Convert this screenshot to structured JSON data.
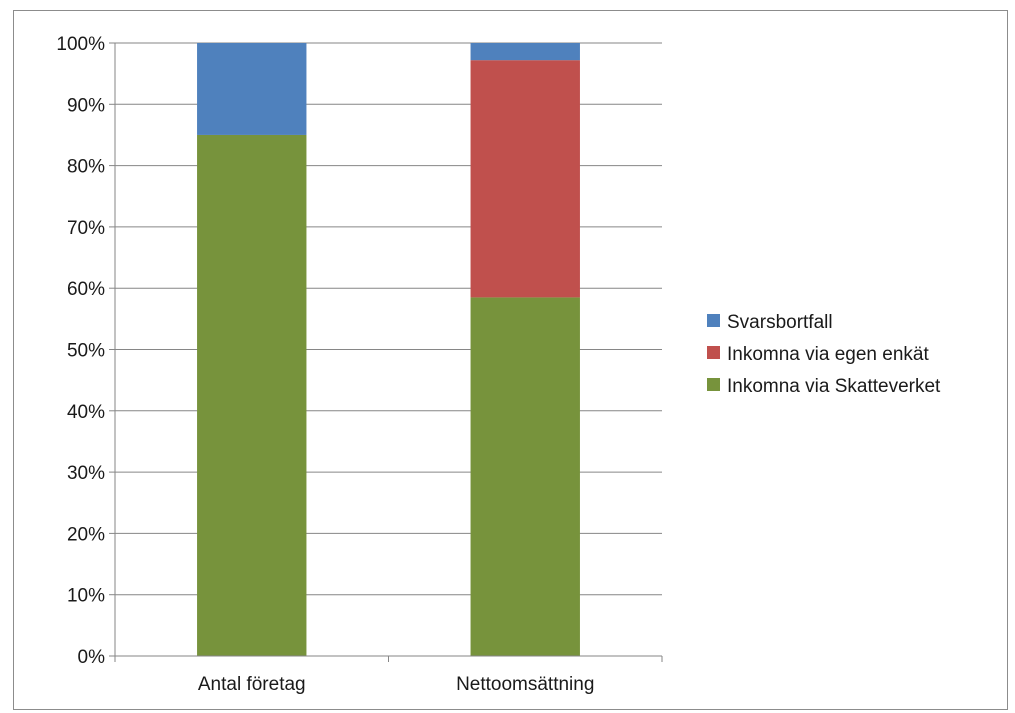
{
  "chart_data": {
    "type": "bar",
    "stacked": true,
    "percent_stacked": true,
    "title": "",
    "xlabel": "",
    "ylabel": "",
    "categories": [
      "Antal företag",
      "Nettoomsättning"
    ],
    "series": [
      {
        "name": "Inkomna via Skatteverket",
        "values": [
          85,
          58.5
        ],
        "color": "#77933c"
      },
      {
        "name": "Inkomna via egen enkät",
        "values": [
          0,
          38.7
        ],
        "color": "#c0504d"
      },
      {
        "name": "Svarsbortfall",
        "values": [
          15,
          2.8
        ],
        "color": "#4f81bd"
      }
    ],
    "ylim": [
      0,
      100
    ],
    "y_ticks": [
      "0%",
      "10%",
      "20%",
      "30%",
      "40%",
      "50%",
      "60%",
      "70%",
      "80%",
      "90%",
      "100%"
    ],
    "grid": true,
    "legend_position": "right",
    "legend_order": [
      "Svarsbortfall",
      "Inkomna via egen enkät",
      "Inkomna via Skatteverket"
    ]
  }
}
